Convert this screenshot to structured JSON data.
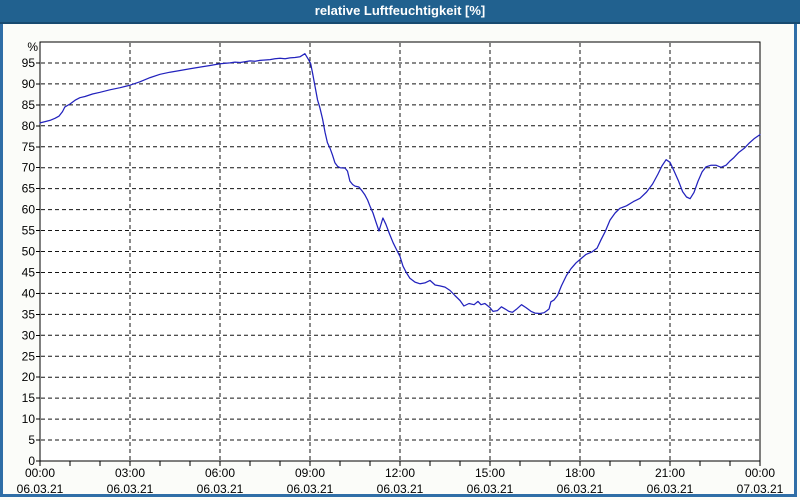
{
  "window": {
    "title": "relative Luftfeuchtigkeit [%]"
  },
  "colors": {
    "titlebar_bg": "#21618f",
    "titlebar_edge": "#174a70",
    "window_border": "#2f6ea7",
    "body_bg": "#fbfcf9",
    "plot_bg": "#ffffff",
    "axis": "#000000",
    "grid": "#141414",
    "line": "#2222bd",
    "label_text": "#000000",
    "title_text": "#ffffff"
  },
  "chart_data": {
    "type": "line",
    "title": "relative Luftfeuchtigkeit [%]",
    "ylabel": "%",
    "xlabel": "",
    "ylim": [
      0,
      100
    ],
    "xlim_hours": [
      0,
      24
    ],
    "grid": "dashed-black-horizontal-every-5-vertical-every-3h",
    "legend": "none",
    "y_ticks": [
      0,
      5,
      10,
      15,
      20,
      25,
      30,
      35,
      40,
      45,
      50,
      55,
      60,
      65,
      70,
      75,
      80,
      85,
      90,
      95
    ],
    "x_minor_tick_every_hours": 1,
    "x_ticks": [
      {
        "hour": 0,
        "time": "00:00",
        "date": "06.03.21"
      },
      {
        "hour": 3,
        "time": "03:00",
        "date": "06.03.21"
      },
      {
        "hour": 6,
        "time": "06:00",
        "date": "06.03.21"
      },
      {
        "hour": 9,
        "time": "09:00",
        "date": "06.03.21"
      },
      {
        "hour": 12,
        "time": "12:00",
        "date": "06.03.21"
      },
      {
        "hour": 15,
        "time": "15:00",
        "date": "06.03.21"
      },
      {
        "hour": 18,
        "time": "18:00",
        "date": "06.03.21"
      },
      {
        "hour": 21,
        "time": "21:00",
        "date": "06.03.21"
      },
      {
        "hour": 24,
        "time": "00:00",
        "date": "07.03.21"
      }
    ],
    "series": [
      {
        "name": "relative Luftfeuchtigkeit [%]",
        "color": "#2222bd",
        "points_hour_value": [
          [
            0.0,
            80.7
          ],
          [
            0.17,
            81.0
          ],
          [
            0.33,
            81.3
          ],
          [
            0.5,
            81.8
          ],
          [
            0.63,
            82.3
          ],
          [
            0.75,
            83.4
          ],
          [
            0.83,
            84.5
          ],
          [
            1.0,
            85.2
          ],
          [
            1.17,
            86.1
          ],
          [
            1.33,
            86.7
          ],
          [
            1.5,
            87.0
          ],
          [
            1.75,
            87.6
          ],
          [
            2.0,
            88.0
          ],
          [
            2.33,
            88.6
          ],
          [
            2.67,
            89.1
          ],
          [
            3.0,
            89.7
          ],
          [
            3.33,
            90.5
          ],
          [
            3.67,
            91.5
          ],
          [
            4.0,
            92.3
          ],
          [
            4.33,
            92.8
          ],
          [
            4.67,
            93.2
          ],
          [
            5.0,
            93.6
          ],
          [
            5.33,
            94.0
          ],
          [
            5.67,
            94.4
          ],
          [
            6.0,
            94.8
          ],
          [
            6.33,
            95.0
          ],
          [
            6.5,
            95.2
          ],
          [
            6.67,
            95.1
          ],
          [
            6.83,
            95.3
          ],
          [
            7.0,
            95.5
          ],
          [
            7.17,
            95.4
          ],
          [
            7.33,
            95.6
          ],
          [
            7.5,
            95.7
          ],
          [
            7.67,
            95.8
          ],
          [
            7.83,
            96.0
          ],
          [
            8.0,
            96.1
          ],
          [
            8.17,
            96.0
          ],
          [
            8.33,
            96.2
          ],
          [
            8.5,
            96.3
          ],
          [
            8.67,
            96.5
          ],
          [
            8.83,
            97.2
          ],
          [
            8.95,
            95.8
          ],
          [
            9.02,
            94.9
          ],
          [
            9.08,
            92.8
          ],
          [
            9.17,
            89.3
          ],
          [
            9.25,
            86.2
          ],
          [
            9.33,
            84.3
          ],
          [
            9.42,
            81.6
          ],
          [
            9.5,
            78.5
          ],
          [
            9.58,
            76.0
          ],
          [
            9.67,
            74.6
          ],
          [
            9.75,
            73.0
          ],
          [
            9.83,
            71.2
          ],
          [
            9.92,
            70.3
          ],
          [
            10.0,
            70.0
          ],
          [
            10.17,
            69.9
          ],
          [
            10.25,
            69.2
          ],
          [
            10.33,
            66.8
          ],
          [
            10.42,
            66.0
          ],
          [
            10.5,
            65.6
          ],
          [
            10.63,
            65.4
          ],
          [
            10.72,
            64.6
          ],
          [
            10.83,
            63.5
          ],
          [
            10.92,
            62.3
          ],
          [
            11.0,
            60.8
          ],
          [
            11.1,
            59.2
          ],
          [
            11.2,
            57.0
          ],
          [
            11.3,
            54.9
          ],
          [
            11.43,
            58.0
          ],
          [
            11.53,
            56.5
          ],
          [
            11.65,
            54.2
          ],
          [
            11.77,
            52.1
          ],
          [
            11.88,
            50.5
          ],
          [
            12.0,
            48.8
          ],
          [
            12.1,
            46.5
          ],
          [
            12.2,
            45.1
          ],
          [
            12.33,
            43.6
          ],
          [
            12.5,
            42.7
          ],
          [
            12.67,
            42.3
          ],
          [
            12.83,
            42.5
          ],
          [
            13.0,
            43.1
          ],
          [
            13.17,
            42.0
          ],
          [
            13.33,
            41.8
          ],
          [
            13.5,
            41.5
          ],
          [
            13.67,
            40.7
          ],
          [
            13.83,
            39.5
          ],
          [
            14.0,
            38.3
          ],
          [
            14.13,
            37.0
          ],
          [
            14.3,
            37.6
          ],
          [
            14.47,
            37.3
          ],
          [
            14.6,
            38.1
          ],
          [
            14.7,
            37.3
          ],
          [
            14.83,
            37.6
          ],
          [
            15.0,
            36.6
          ],
          [
            15.1,
            35.7
          ],
          [
            15.25,
            35.9
          ],
          [
            15.38,
            36.8
          ],
          [
            15.5,
            36.3
          ],
          [
            15.63,
            35.7
          ],
          [
            15.75,
            35.5
          ],
          [
            15.88,
            36.2
          ],
          [
            16.05,
            37.3
          ],
          [
            16.2,
            36.6
          ],
          [
            16.37,
            35.7
          ],
          [
            16.5,
            35.3
          ],
          [
            16.67,
            35.2
          ],
          [
            16.8,
            35.4
          ],
          [
            16.9,
            35.9
          ],
          [
            16.97,
            36.3
          ],
          [
            17.03,
            38.0
          ],
          [
            17.13,
            38.4
          ],
          [
            17.25,
            39.5
          ],
          [
            17.38,
            41.8
          ],
          [
            17.55,
            44.3
          ],
          [
            17.7,
            45.9
          ],
          [
            17.87,
            47.3
          ],
          [
            18.0,
            48.1
          ],
          [
            18.2,
            49.3
          ],
          [
            18.4,
            49.9
          ],
          [
            18.57,
            50.8
          ],
          [
            18.7,
            52.8
          ],
          [
            18.83,
            54.6
          ],
          [
            19.0,
            57.5
          ],
          [
            19.17,
            59.2
          ],
          [
            19.33,
            60.3
          ],
          [
            19.55,
            60.9
          ],
          [
            19.78,
            61.9
          ],
          [
            20.0,
            62.7
          ],
          [
            20.22,
            64.2
          ],
          [
            20.42,
            66.1
          ],
          [
            20.6,
            68.5
          ],
          [
            20.73,
            70.4
          ],
          [
            20.87,
            71.9
          ],
          [
            21.0,
            71.3
          ],
          [
            21.13,
            69.3
          ],
          [
            21.28,
            66.9
          ],
          [
            21.42,
            64.3
          ],
          [
            21.55,
            63.0
          ],
          [
            21.67,
            62.6
          ],
          [
            21.8,
            64.1
          ],
          [
            21.93,
            66.7
          ],
          [
            22.07,
            69.0
          ],
          [
            22.2,
            70.2
          ],
          [
            22.37,
            70.6
          ],
          [
            22.53,
            70.6
          ],
          [
            22.7,
            70.1
          ],
          [
            22.87,
            70.6
          ],
          [
            23.0,
            71.6
          ],
          [
            23.13,
            72.4
          ],
          [
            23.3,
            73.7
          ],
          [
            23.47,
            74.6
          ],
          [
            23.63,
            75.8
          ],
          [
            23.8,
            76.9
          ],
          [
            24.0,
            77.9
          ]
        ]
      }
    ]
  }
}
